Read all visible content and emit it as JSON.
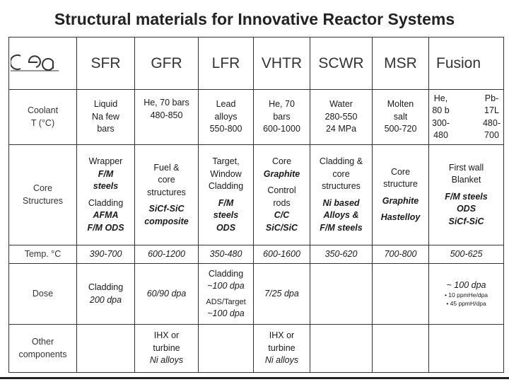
{
  "title": "Structural materials for Innovative Reactor Systems",
  "logo_text": "cea",
  "systems": [
    "SFR",
    "GFR",
    "LFR",
    "VHTR",
    "SCWR",
    "MSR",
    "Fusion"
  ],
  "rows": {
    "coolant": {
      "label": [
        "Coolant",
        "T (°C)"
      ],
      "SFR": [
        "Liquid",
        "Na few",
        "bars"
      ],
      "GFR": [
        "He, 70 bars",
        "480-850"
      ],
      "LFR": [
        "Lead",
        "alloys",
        "550-800"
      ],
      "VHTR": [
        "He, 70",
        "bars",
        "600-1000"
      ],
      "SCWR": [
        "Water",
        "280-550",
        "24 MPa"
      ],
      "MSR": [
        "Molten",
        "salt",
        "500-720"
      ],
      "Fusion_a": [
        "He,",
        "80 b",
        "300-",
        "480"
      ],
      "Fusion_b": [
        "Pb-",
        "17L",
        "480-",
        "700"
      ]
    },
    "core": {
      "label": [
        "Core",
        "Structures"
      ],
      "SFR": [
        "Wrapper",
        "F/M",
        "steels",
        "Cladding",
        "AFMA",
        "F/M ODS"
      ],
      "GFR": [
        "Fuel &",
        "core",
        "structures",
        "SiCf-SiC",
        "composite"
      ],
      "LFR": [
        "Target,",
        "Window",
        "Cladding",
        "F/M",
        "steels",
        "ODS"
      ],
      "VHTR": [
        "Core",
        "Graphite",
        "Control",
        "rods",
        "C/C",
        "SiC/SiC"
      ],
      "SCWR": [
        "Cladding &",
        "core",
        "structures",
        "Ni based",
        "Alloys &",
        "F/M steels"
      ],
      "MSR": [
        "Core",
        "structure",
        "Graphite",
        "Hastelloy"
      ],
      "Fusion": [
        "First wall",
        "Blanket",
        "F/M steels",
        "ODS",
        "SiCf-SiC"
      ]
    },
    "temp": {
      "label": "Temp. °C",
      "SFR": "390-700",
      "GFR": "600-1200",
      "LFR": "350-480",
      "VHTR": "600-1600",
      "SCWR": "350-620",
      "MSR": "700-800",
      "Fusion": "500-625"
    },
    "dose": {
      "label": "Dose",
      "SFR": [
        "Cladding",
        "200 dpa"
      ],
      "GFR": "60/90 dpa",
      "LFR": [
        "Cladding",
        "~100 dpa",
        "ADS/Target",
        "~100 dpa"
      ],
      "VHTR": "7/25 dpa",
      "SCWR": "",
      "MSR": "",
      "Fusion": [
        "~ 100 dpa",
        "• 10 ppmHe/dpa",
        "• 45 ppmH/dpa"
      ]
    },
    "other": {
      "label": [
        "Other",
        "components"
      ],
      "SFR": "",
      "GFR": [
        "IHX or",
        "turbine",
        "Ni alloys"
      ],
      "LFR": "",
      "VHTR": [
        "IHX or",
        "turbine",
        "Ni alloys"
      ],
      "SCWR": "",
      "MSR": "",
      "Fusion": ""
    }
  }
}
